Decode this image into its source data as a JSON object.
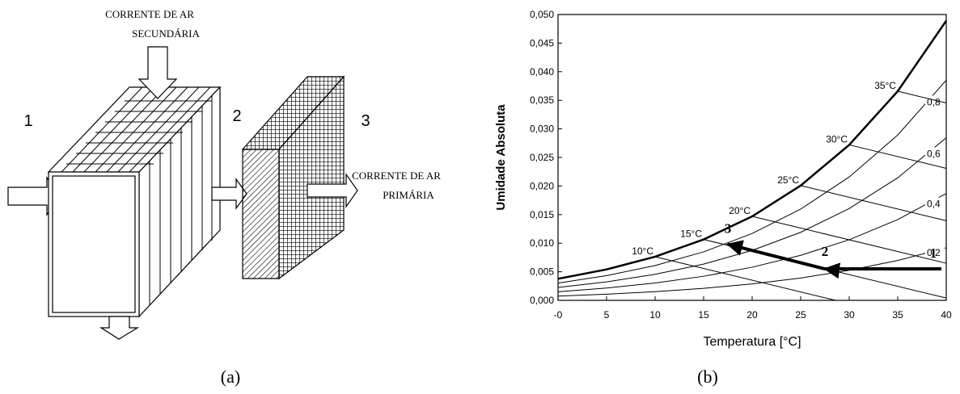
{
  "panel_a": {
    "secondary_air": [
      "CORRENTE DE AR",
      "SECUNDÁRIA"
    ],
    "primary_air": [
      "CORRENTE DE AR",
      "PRIMÁRIA"
    ],
    "stages": [
      "1",
      "2",
      "3"
    ],
    "caption": "(a)"
  },
  "chart_data": {
    "type": "line",
    "caption": "(b)",
    "x_label": "Temperatura [°C]",
    "y_label": "Umidade Absoluta",
    "xlim": [
      0,
      40
    ],
    "xticks": [
      {
        "value": 0,
        "label": "-0"
      },
      5,
      10,
      15,
      20,
      25,
      30,
      35,
      40
    ],
    "ylim": [
      0,
      0.05
    ],
    "yticks": [
      {
        "value": 0,
        "label": "0,000"
      },
      {
        "value": 0.005,
        "label": "0,005"
      },
      {
        "value": 0.01,
        "label": "0,010"
      },
      {
        "value": 0.015,
        "label": "0,015"
      },
      {
        "value": 0.02,
        "label": "0,020"
      },
      {
        "value": 0.025,
        "label": "0,025"
      },
      {
        "value": 0.03,
        "label": "0,030"
      },
      {
        "value": 0.035,
        "label": "0,035"
      },
      {
        "value": 0.04,
        "label": "0,040"
      },
      {
        "value": 0.045,
        "label": "0,045"
      },
      {
        "value": 0.05,
        "label": "0,050"
      }
    ],
    "saturation": {
      "color": "#000000",
      "x": [
        0,
        5,
        10,
        15,
        20,
        25,
        30,
        35,
        40
      ],
      "values": [
        0.00377,
        0.00541,
        0.00763,
        0.01065,
        0.01469,
        0.02008,
        0.0272,
        0.03658,
        0.04891
      ]
    },
    "rh_series": [
      {
        "name": "0,2",
        "color": "#000000",
        "x": [
          0,
          5,
          10,
          15,
          20,
          25,
          30,
          35,
          40
        ],
        "values": [
          0.00075,
          0.00107,
          0.00151,
          0.0021,
          0.00288,
          0.0039,
          0.00526,
          0.00697,
          0.0092
        ]
      },
      {
        "name": "0,4",
        "color": "#000000",
        "x": [
          0,
          5,
          10,
          15,
          20,
          25,
          30,
          35,
          40
        ],
        "values": [
          0.0015,
          0.00215,
          0.00303,
          0.00421,
          0.0058,
          0.00788,
          0.0106,
          0.01413,
          0.01868
        ]
      },
      {
        "name": "0,6",
        "color": "#000000",
        "x": [
          0,
          5,
          10,
          15,
          20,
          25,
          30,
          35,
          40
        ],
        "values": [
          0.00226,
          0.00323,
          0.00456,
          0.00634,
          0.00874,
          0.0119,
          0.01606,
          0.02144,
          0.02844
        ]
      },
      {
        "name": "0,8",
        "color": "#000000",
        "x": [
          0,
          5,
          10,
          15,
          20,
          25,
          30,
          35,
          40
        ],
        "values": [
          0.00302,
          0.00432,
          0.00609,
          0.00848,
          0.0117,
          0.01596,
          0.02158,
          0.02892,
          0.03851
        ]
      }
    ],
    "wet_bulb_series": [
      {
        "name": "10°C",
        "x": [
          10,
          28.6
        ],
        "values": [
          0.00763,
          0
        ]
      },
      {
        "name": "15°C",
        "x": [
          15,
          40
        ],
        "values": [
          0.01065,
          0.0004
        ]
      },
      {
        "name": "20°C",
        "x": [
          20,
          40
        ],
        "values": [
          0.01469,
          0.00649
        ]
      },
      {
        "name": "25°C",
        "x": [
          25,
          40
        ],
        "values": [
          0.02008,
          0.01393
        ]
      },
      {
        "name": "30°C",
        "x": [
          30,
          40
        ],
        "values": [
          0.0272,
          0.0231
        ]
      },
      {
        "name": "35°C",
        "x": [
          35,
          40
        ],
        "values": [
          0.03658,
          0.03453
        ]
      }
    ],
    "process": {
      "x": [
        39.5,
        27.5,
        17.5
      ],
      "values": [
        0.0055,
        0.0055,
        0.0098
      ],
      "labels": [
        "1",
        "2",
        "3"
      ]
    }
  }
}
